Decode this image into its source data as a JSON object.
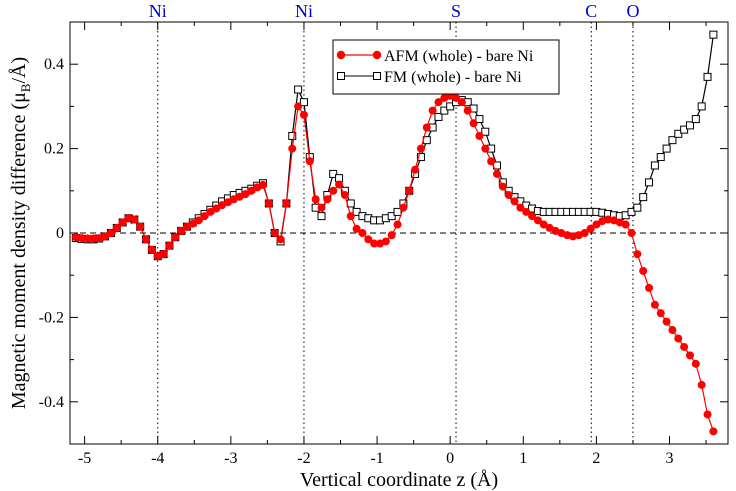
{
  "chart_data": {
    "type": "line",
    "title": "",
    "xlabel": "Vertical coordinate  z (Å)",
    "ylabel_parts": {
      "main": "Magnetic moment density difference (μ",
      "sub": "B",
      "tail": "/Å)"
    },
    "ylabel": "Magnetic moment density difference (μB/Å)",
    "xlim": [
      -5.2,
      3.8
    ],
    "ylim": [
      -0.5,
      0.5
    ],
    "xticks": [
      -5,
      -4,
      -3,
      -2,
      -1,
      0,
      1,
      2,
      3
    ],
    "xtick_labels": [
      "-5",
      "-4",
      "-3",
      "-2",
      "-1",
      "0",
      "1",
      "2",
      "3"
    ],
    "yticks": [
      -0.4,
      -0.2,
      0,
      0.2,
      0.4
    ],
    "ytick_labels": [
      "-0.4",
      "-0.2",
      "0",
      "0.2",
      "0.4"
    ],
    "atom_markers": [
      {
        "label": "Ni",
        "x": -4.0
      },
      {
        "label": "Ni",
        "x": -2.0
      },
      {
        "label": "S",
        "x": 0.08
      },
      {
        "label": "C",
        "x": 1.93
      },
      {
        "label": "O",
        "x": 2.5
      }
    ],
    "zero_line": true,
    "legend_position": "top-right",
    "colors": {
      "afm": "#ff0000",
      "fm": "#000000",
      "atom_labels": "#0000cc"
    },
    "series": [
      {
        "name": "AFM (whole) - bare Ni",
        "marker": "filled-circle",
        "x": [
          -5.12,
          -5.04,
          -4.96,
          -4.88,
          -4.8,
          -4.72,
          -4.64,
          -4.56,
          -4.48,
          -4.4,
          -4.32,
          -4.24,
          -4.16,
          -4.08,
          -4.0,
          -3.92,
          -3.84,
          -3.76,
          -3.68,
          -3.6,
          -3.52,
          -3.44,
          -3.36,
          -3.28,
          -3.2,
          -3.12,
          -3.04,
          -2.96,
          -2.88,
          -2.8,
          -2.72,
          -2.64,
          -2.56,
          -2.48,
          -2.4,
          -2.32,
          -2.24,
          -2.16,
          -2.08,
          -2.0,
          -1.92,
          -1.84,
          -1.76,
          -1.68,
          -1.6,
          -1.52,
          -1.44,
          -1.36,
          -1.28,
          -1.2,
          -1.12,
          -1.04,
          -0.96,
          -0.88,
          -0.8,
          -0.72,
          -0.64,
          -0.56,
          -0.48,
          -0.4,
          -0.32,
          -0.24,
          -0.16,
          -0.08,
          0.0,
          0.08,
          0.16,
          0.24,
          0.32,
          0.4,
          0.48,
          0.56,
          0.64,
          0.72,
          0.8,
          0.88,
          0.96,
          1.04,
          1.12,
          1.2,
          1.28,
          1.36,
          1.44,
          1.52,
          1.6,
          1.68,
          1.76,
          1.84,
          1.92,
          2.0,
          2.08,
          2.16,
          2.24,
          2.32,
          2.4,
          2.48,
          2.56,
          2.64,
          2.72,
          2.8,
          2.88,
          2.96,
          3.04,
          3.12,
          3.2,
          3.28,
          3.36,
          3.44,
          3.52,
          3.6
        ],
        "y": [
          -0.01,
          -0.012,
          -0.013,
          -0.013,
          -0.012,
          -0.008,
          0.0,
          0.012,
          0.025,
          0.035,
          0.032,
          0.015,
          -0.015,
          -0.04,
          -0.055,
          -0.05,
          -0.03,
          -0.01,
          0.005,
          0.015,
          0.022,
          0.03,
          0.04,
          0.05,
          0.058,
          0.066,
          0.073,
          0.08,
          0.086,
          0.092,
          0.1,
          0.108,
          0.114,
          0.07,
          0.0,
          -0.015,
          0.07,
          0.2,
          0.3,
          0.28,
          0.17,
          0.08,
          0.06,
          0.08,
          0.1,
          0.115,
          0.09,
          0.04,
          0.01,
          0.0,
          -0.015,
          -0.025,
          -0.025,
          -0.02,
          -0.005,
          0.02,
          0.06,
          0.1,
          0.15,
          0.2,
          0.25,
          0.29,
          0.31,
          0.32,
          0.325,
          0.32,
          0.31,
          0.29,
          0.26,
          0.23,
          0.2,
          0.17,
          0.14,
          0.11,
          0.09,
          0.075,
          0.06,
          0.05,
          0.04,
          0.03,
          0.02,
          0.012,
          0.005,
          0.0,
          -0.005,
          -0.008,
          -0.005,
          0.0,
          0.01,
          0.02,
          0.028,
          0.032,
          0.03,
          0.025,
          0.02,
          0.0,
          -0.05,
          -0.09,
          -0.13,
          -0.17,
          -0.19,
          -0.21,
          -0.23,
          -0.25,
          -0.27,
          -0.29,
          -0.31,
          -0.36,
          -0.43,
          -0.47
        ]
      },
      {
        "name": "FM (whole) - bare Ni",
        "marker": "open-square",
        "x": [
          -5.12,
          -5.04,
          -4.96,
          -4.88,
          -4.8,
          -4.72,
          -4.64,
          -4.56,
          -4.48,
          -4.4,
          -4.32,
          -4.24,
          -4.16,
          -4.08,
          -4.0,
          -3.92,
          -3.84,
          -3.76,
          -3.68,
          -3.6,
          -3.52,
          -3.44,
          -3.36,
          -3.28,
          -3.2,
          -3.12,
          -3.04,
          -2.96,
          -2.88,
          -2.8,
          -2.72,
          -2.64,
          -2.56,
          -2.48,
          -2.4,
          -2.32,
          -2.24,
          -2.16,
          -2.08,
          -2.0,
          -1.92,
          -1.84,
          -1.76,
          -1.68,
          -1.6,
          -1.52,
          -1.44,
          -1.36,
          -1.28,
          -1.2,
          -1.12,
          -1.04,
          -0.96,
          -0.88,
          -0.8,
          -0.72,
          -0.64,
          -0.56,
          -0.48,
          -0.4,
          -0.32,
          -0.24,
          -0.16,
          -0.08,
          0.0,
          0.08,
          0.16,
          0.24,
          0.32,
          0.4,
          0.48,
          0.56,
          0.64,
          0.72,
          0.8,
          0.88,
          0.96,
          1.04,
          1.12,
          1.2,
          1.28,
          1.36,
          1.44,
          1.52,
          1.6,
          1.68,
          1.76,
          1.84,
          1.92,
          2.0,
          2.08,
          2.16,
          2.24,
          2.32,
          2.4,
          2.48,
          2.56,
          2.64,
          2.72,
          2.8,
          2.88,
          2.96,
          3.04,
          3.12,
          3.2,
          3.28,
          3.36,
          3.44,
          3.52,
          3.6
        ],
        "y": [
          -0.012,
          -0.014,
          -0.015,
          -0.015,
          -0.013,
          -0.008,
          0.0,
          0.012,
          0.025,
          0.035,
          0.032,
          0.015,
          -0.015,
          -0.04,
          -0.055,
          -0.05,
          -0.03,
          -0.01,
          0.005,
          0.015,
          0.025,
          0.035,
          0.045,
          0.055,
          0.065,
          0.075,
          0.082,
          0.09,
          0.095,
          0.1,
          0.105,
          0.112,
          0.118,
          0.07,
          0.0,
          -0.02,
          0.07,
          0.23,
          0.34,
          0.31,
          0.18,
          0.06,
          0.04,
          0.09,
          0.14,
          0.13,
          0.1,
          0.07,
          0.05,
          0.04,
          0.035,
          0.03,
          0.03,
          0.035,
          0.04,
          0.05,
          0.07,
          0.1,
          0.14,
          0.18,
          0.22,
          0.25,
          0.275,
          0.29,
          0.3,
          0.31,
          0.315,
          0.31,
          0.295,
          0.27,
          0.24,
          0.2,
          0.16,
          0.12,
          0.1,
          0.085,
          0.075,
          0.065,
          0.058,
          0.052,
          0.05,
          0.05,
          0.05,
          0.05,
          0.05,
          0.05,
          0.05,
          0.05,
          0.05,
          0.05,
          0.048,
          0.045,
          0.042,
          0.04,
          0.042,
          0.05,
          0.06,
          0.085,
          0.12,
          0.16,
          0.18,
          0.2,
          0.22,
          0.235,
          0.245,
          0.255,
          0.27,
          0.3,
          0.37,
          0.47
        ]
      }
    ]
  }
}
